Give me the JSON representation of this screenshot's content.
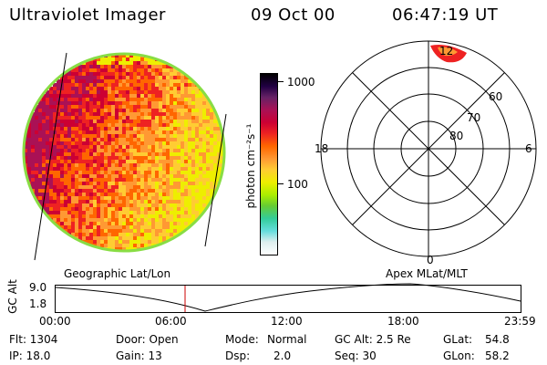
{
  "header": {
    "instrument": "Ultraviolet Imager",
    "date": "09 Oct 00",
    "time": "06:47:19 UT"
  },
  "colorbar": {
    "unit_label": "photon cm⁻²s⁻¹",
    "ticks": [
      "1000",
      "100"
    ],
    "colors": [
      "#ffffff",
      "#ddeeee",
      "#66dddd",
      "#33cc99",
      "#66cc33",
      "#aaee00",
      "#eeee00",
      "#ffcc33",
      "#ff9933",
      "#ff6600",
      "#ee2222",
      "#cc0033",
      "#aa1155",
      "#662266",
      "#220044",
      "#000000"
    ]
  },
  "polar_plot": {
    "mlt_labels": {
      "top": "12",
      "left": "18",
      "right": "6",
      "bottom": "0"
    },
    "lat_labels": [
      "60",
      "70",
      "80"
    ]
  },
  "timeline": {
    "left_title": "Geographic Lat/Lon",
    "right_title": "Apex MLat/MLT",
    "y_axis_label": "GC Alt",
    "y_ticks": [
      "9.0",
      "1.8"
    ],
    "x_ticks": [
      "00:00",
      "06:00",
      "12:00",
      "18:00",
      "23:59"
    ],
    "marker_color": "#cc0000"
  },
  "status": {
    "flt": "Flt: 1304",
    "ip": "IP: 18.0",
    "door": "Door: Open",
    "gain": "Gain: 13",
    "mode_label": "Mode:",
    "mode_value": "Normal",
    "dsp_label": "Dsp:",
    "dsp_value": "2.0",
    "gcalt": "GC Alt: 2.5 Re",
    "seq": "Seq: 30",
    "glat_label": "GLat:",
    "glat_value": "54.8",
    "glon_label": "GLon:",
    "glon_value": "58.2"
  }
}
